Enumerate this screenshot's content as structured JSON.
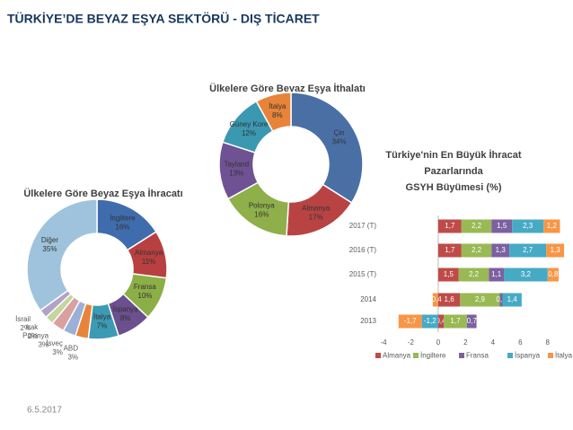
{
  "title": "TÜRKİYE’DE BEYAZ EŞYA SEKTÖRÜ - DIŞ TİCARET",
  "date": "6.5.2017",
  "chart_data": [
    {
      "type": "donut",
      "title": "Ülkelere Göre Beyaz Eşya İhracatı",
      "categories": [
        "İngiltere",
        "Almanya",
        "Fransa",
        "İspanya",
        "İtalya",
        "ABD",
        "İsveç",
        "Polonya",
        "Irak",
        "İsrail",
        "Diğer"
      ],
      "values": [
        16,
        11,
        10,
        8,
        7,
        3,
        3,
        3,
        2,
        2,
        35
      ],
      "value_labels": [
        "16%",
        "11%",
        "10%",
        "8%",
        "7%",
        "3%",
        "3%",
        "3%",
        "2%",
        "2%",
        "35%"
      ],
      "colors": [
        "#3f6cad",
        "#b84040",
        "#8cae46",
        "#6b4f8f",
        "#3c9ab4",
        "#e8843a",
        "#9ab0d8",
        "#d9a0a0",
        "#c3d69b",
        "#b3a2c7",
        "#9fc3dc"
      ]
    },
    {
      "type": "donut",
      "title": "Ülkelere Göre Beyaz Eşya İthalatı",
      "categories": [
        "Çin",
        "Almanya",
        "Polonya",
        "Tayland",
        "Güney Kore",
        "İtalya"
      ],
      "values": [
        34,
        17,
        16,
        13,
        12,
        8
      ],
      "value_labels": [
        "34%",
        "17%",
        "16%",
        "13%",
        "12%",
        "8%"
      ],
      "colors": [
        "#4a6fa5",
        "#b94343",
        "#8faf4a",
        "#6f5293",
        "#3a98b0",
        "#e8843a"
      ]
    },
    {
      "type": "stacked-hbar",
      "title": [
        "Türkiye'nin En Büyük İhracat",
        "Pazarlarında",
        "GSYH Büyümesi (%)"
      ],
      "categories": [
        "2017 (T)",
        "2016 (T)",
        "2015 (T)",
        "2014",
        "2013"
      ],
      "series": [
        {
          "name": "Almanya",
          "color": "#be4b48",
          "values": [
            1.7,
            1.7,
            1.5,
            1.6,
            0.4
          ],
          "value_labels": [
            "1,7",
            "1,7",
            "1,5",
            "1,6",
            "0,4"
          ]
        },
        {
          "name": "İngiltere",
          "color": "#98b954",
          "values": [
            2.2,
            2.2,
            2.2,
            2.9,
            1.7
          ],
          "value_labels": [
            "2,2",
            "2,2",
            "2,2",
            "2,9",
            "1,7"
          ]
        },
        {
          "name": "Fransa",
          "color": "#7d60a0",
          "values": [
            1.5,
            1.3,
            1.1,
            0.2,
            0.7
          ],
          "value_labels": [
            "1,5",
            "1,3",
            "1,1",
            "0,2",
            "0,7"
          ]
        },
        {
          "name": "İspanya",
          "color": "#46aac5",
          "values": [
            2.3,
            2.7,
            3.2,
            1.4,
            -1.2
          ],
          "value_labels": [
            "2,3",
            "2,7",
            "3,2",
            "1,4",
            "-1,2"
          ]
        },
        {
          "name": "İtalya",
          "color": "#f79646",
          "values": [
            1.2,
            1.3,
            0.8,
            -0.4,
            -1.7
          ],
          "value_labels": [
            "1,2",
            "1,3",
            "0,8",
            "-0,4",
            "-1,7"
          ]
        }
      ],
      "xlim": [
        -4,
        9
      ],
      "xticks": [
        -4,
        -2,
        0,
        2,
        4,
        6,
        8
      ],
      "legend": "bottom"
    }
  ]
}
